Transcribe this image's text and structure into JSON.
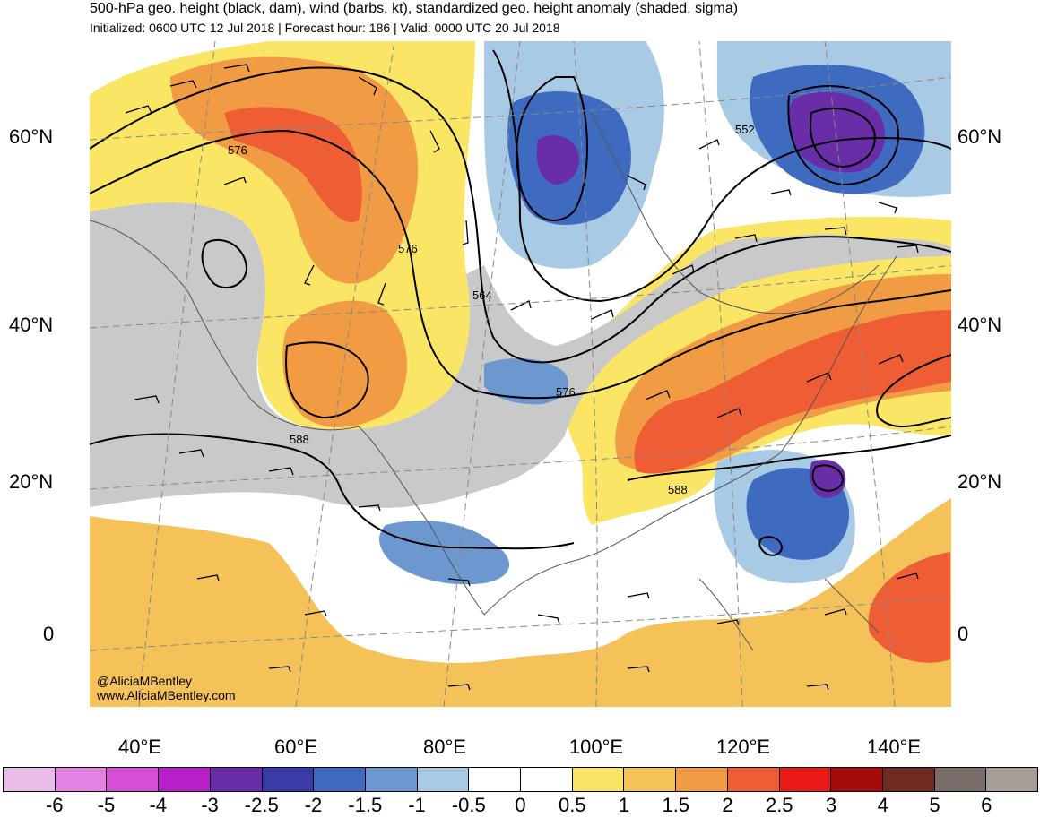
{
  "header": {
    "title": "500-hPa geo. height (black, dam), wind (barbs, kt), standardized geo. height anomaly (shaded, sigma)",
    "subtitle": "Initialized: 0600 UTC 12 Jul 2018 | Forecast hour: 186 | Valid: 0000 UTC 20 Jul 2018"
  },
  "axes": {
    "lat_left": [
      "60°N",
      "40°N",
      "20°N",
      "0"
    ],
    "lat_right": [
      "60°N",
      "40°N",
      "20°N",
      "0"
    ],
    "lon": [
      "40°E",
      "60°E",
      "80°E",
      "100°E",
      "120°E",
      "140°E"
    ]
  },
  "contour_labels": [
    "576",
    "576",
    "552",
    "564",
    "576",
    "588",
    "588"
  ],
  "credit": {
    "handle": "@AliciaMBentley",
    "site": "www.AliciaMBentley.com"
  },
  "colorbar": {
    "colors": [
      "#e8bde8",
      "#e283e2",
      "#d64fd6",
      "#b71fc8",
      "#6a2da8",
      "#3a3ba6",
      "#3e6bbf",
      "#6d98cf",
      "#a8cae5",
      "#ffffff",
      "#ffffff",
      "#fbe565",
      "#f5c25a",
      "#f29b45",
      "#ef5d35",
      "#e81a1a",
      "#a60b0b",
      "#6f2a22",
      "#7a6e6a",
      "#a79d99"
    ],
    "ticks": [
      "-6",
      "-5",
      "-4",
      "-3",
      "-2.5",
      "-2",
      "-1.5",
      "-1",
      "-0.5",
      "0",
      "0.5",
      "1",
      "1.5",
      "2",
      "2.5",
      "3",
      "4",
      "5",
      "6"
    ]
  },
  "palette": {
    "grey": "#c9c9c9",
    "yellow": "#fbe565",
    "light_orange": "#f5c25a",
    "orange": "#f29b45",
    "dark_orange": "#ef5d35",
    "red": "#e81a1a",
    "light_blue": "#a8cae5",
    "mid_blue": "#6d98cf",
    "blue": "#3e6bbf",
    "dark_blue": "#3a3ba6",
    "purple": "#6a2da8",
    "magenta": "#b71fc8"
  }
}
